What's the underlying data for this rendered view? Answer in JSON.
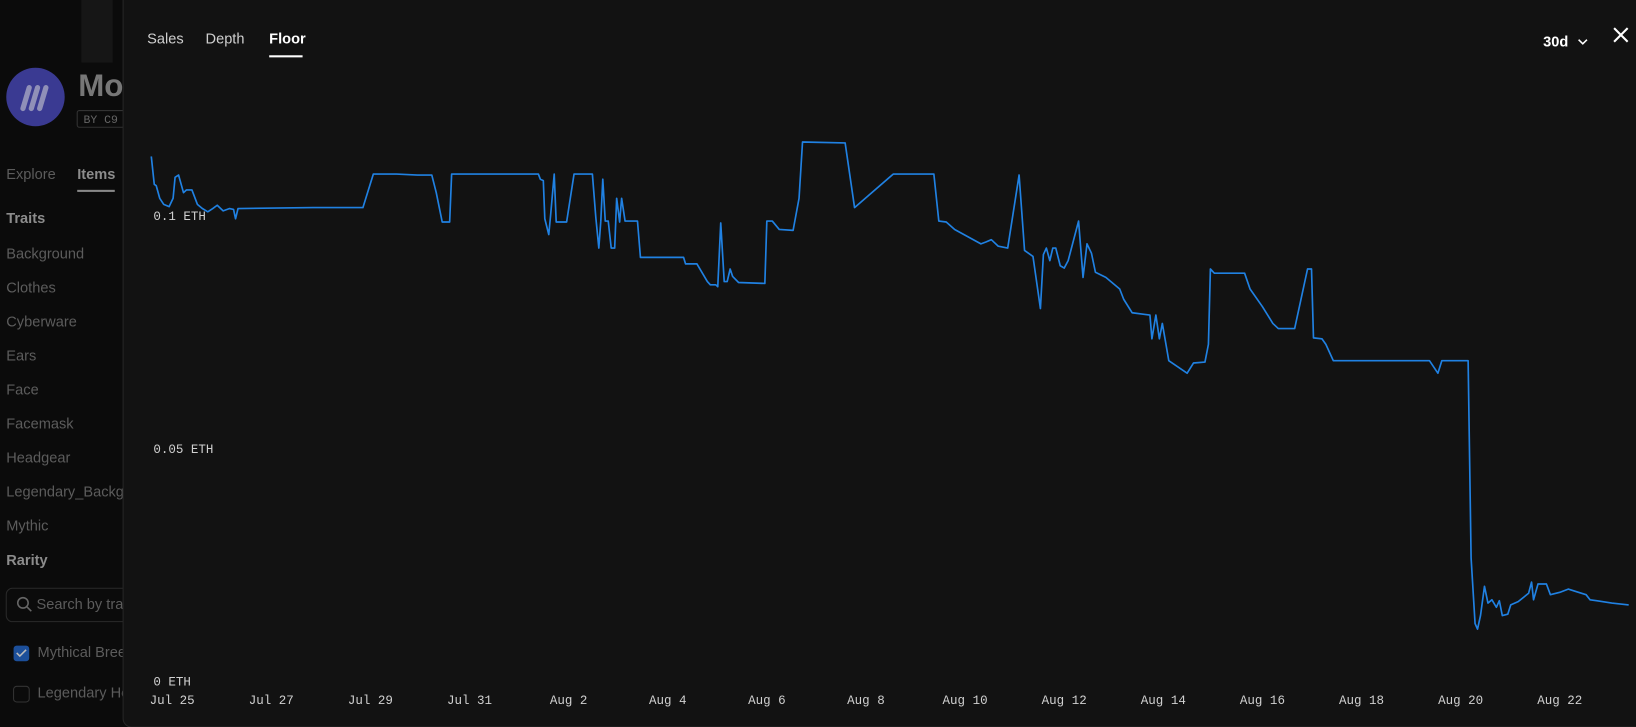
{
  "sidebar": {
    "title": "Mo",
    "creator": "BY C9",
    "nav": [
      "Explore",
      "Items"
    ],
    "traits_heading": "Traits",
    "traits": [
      "Background",
      "Clothes",
      "Cyberware",
      "Ears",
      "Face",
      "Facemask",
      "Headgear",
      "Legendary_Backgro",
      "Mythic"
    ],
    "rarity_heading": "Rarity",
    "search_placeholder": "Search by tra",
    "rarity_options": [
      "Mythical Bree",
      "Legendary Ho"
    ]
  },
  "modal": {
    "tabs": [
      "Sales",
      "Depth",
      "Floor"
    ],
    "range": "30d"
  },
  "chart_data": {
    "type": "line",
    "color": "#2081e2",
    "x": [
      -0.42,
      -0.36,
      -0.32,
      -0.25,
      -0.17,
      -0.06,
      0.02,
      0.06,
      0.13,
      0.23,
      0.29,
      0.4,
      0.51,
      0.61,
      0.72,
      0.82,
      0.91,
      1.03,
      1.16,
      1.24,
      1.28,
      1.33,
      2.84,
      3.85,
      4.06,
      4.53,
      4.95,
      5.24,
      5.33,
      5.45,
      5.6,
      5.64,
      6.42,
      7.39,
      7.43,
      7.49,
      7.52,
      7.6,
      7.64,
      7.71,
      7.75,
      7.96,
      8.11,
      8.48,
      8.55,
      8.61,
      8.65,
      8.69,
      8.74,
      8.8,
      8.86,
      8.93,
      8.97,
      9.03,
      9.07,
      9.14,
      9.39,
      9.45,
      10.32,
      10.36,
      10.59,
      10.8,
      10.86,
      10.97,
      11.01,
      11.07,
      11.14,
      11.2,
      11.26,
      11.31,
      11.43,
      11.96,
      12.0,
      12.11,
      12.25,
      12.53,
      12.65,
      12.72,
      13.58,
      13.77,
      14.55,
      15.37,
      15.47,
      15.62,
      15.79,
      16.32,
      16.42,
      16.53,
      16.67,
      16.86,
      17.09,
      17.2,
      17.37,
      17.52,
      17.58,
      17.64,
      17.71,
      17.77,
      17.83,
      17.92,
      18.0,
      18.08,
      18.29,
      18.38,
      18.46,
      18.55,
      18.63,
      18.84,
      19.12,
      19.2,
      19.37,
      19.73,
      19.77,
      19.85,
      19.92,
      19.98,
      20.06,
      20.11,
      20.48,
      20.61,
      20.84,
      20.91,
      20.95,
      21.03,
      21.64,
      21.75,
      22.0,
      22.21,
      22.32,
      22.65,
      22.91,
      22.99,
      23.03,
      23.2,
      23.28,
      23.43,
      25.37,
      25.54,
      25.62,
      26.15,
      26.21,
      26.29,
      26.34,
      26.4,
      26.48,
      26.55,
      26.63,
      26.72,
      26.78,
      26.84,
      26.95,
      27.01,
      27.16,
      27.37,
      27.43,
      27.47,
      27.56,
      27.73,
      27.81,
      28.0,
      28.17,
      28.32,
      28.53,
      28.61,
      28.74,
      29.05,
      29.39
    ],
    "values": [
      0.113,
      0.107,
      0.1067,
      0.104,
      0.1027,
      0.1022,
      0.104,
      0.1085,
      0.109,
      0.1052,
      0.1058,
      0.1058,
      0.1027,
      0.1018,
      0.1011,
      0.1018,
      0.1025,
      0.1013,
      0.1018,
      0.1016,
      0.0996,
      0.1018,
      0.102,
      0.102,
      0.1092,
      0.1092,
      0.109,
      0.109,
      0.1052,
      0.0989,
      0.0989,
      0.1092,
      0.1092,
      0.1092,
      0.1081,
      0.1078,
      0.0996,
      0.0962,
      0.1007,
      0.1092,
      0.0989,
      0.0989,
      0.1092,
      0.1092,
      0.0998,
      0.0933,
      0.0991,
      0.1081,
      0.0991,
      0.0991,
      0.0933,
      0.0933,
      0.104,
      0.0989,
      0.104,
      0.0991,
      0.0991,
      0.0913,
      0.0913,
      0.0899,
      0.0899,
      0.0861,
      0.0854,
      0.0854,
      0.085,
      0.0987,
      0.0861,
      0.0861,
      0.0888,
      0.0872,
      0.0859,
      0.0857,
      0.0991,
      0.0991,
      0.0973,
      0.0971,
      0.104,
      0.1161,
      0.1159,
      0.102,
      0.1092,
      0.1092,
      0.0991,
      0.0989,
      0.0973,
      0.0942,
      0.0946,
      0.0951,
      0.0937,
      0.0933,
      0.109,
      0.0928,
      0.0915,
      0.0803,
      0.0919,
      0.0933,
      0.0906,
      0.0933,
      0.0933,
      0.0895,
      0.089,
      0.0906,
      0.0991,
      0.087,
      0.0942,
      0.0922,
      0.0881,
      0.087,
      0.0845,
      0.0823,
      0.0794,
      0.0789,
      0.0738,
      0.0789,
      0.0738,
      0.0771,
      0.0722,
      0.0691,
      0.0664,
      0.0686,
      0.0688,
      0.0726,
      0.0888,
      0.0879,
      0.0879,
      0.0845,
      0.0807,
      0.0771,
      0.076,
      0.076,
      0.0888,
      0.0888,
      0.074,
      0.0738,
      0.0726,
      0.0691,
      0.0691,
      0.0664,
      0.0691,
      0.0691,
      0.0267,
      0.0126,
      0.0114,
      0.0143,
      0.0206,
      0.017,
      0.0177,
      0.0161,
      0.0175,
      0.0143,
      0.0146,
      0.0166,
      0.0173,
      0.0191,
      0.0215,
      0.0177,
      0.0211,
      0.0211,
      0.0188,
      0.0193,
      0.02,
      0.0195,
      0.0188,
      0.0177,
      0.0175,
      0.017,
      0.0166
    ],
    "xlim": [
      -0.42,
      29.39
    ],
    "ylim": [
      0,
      0.1242
    ],
    "xticks": [
      {
        "value": 0,
        "label": "Jul 25"
      },
      {
        "value": 2,
        "label": "Jul 27"
      },
      {
        "value": 4,
        "label": "Jul 29"
      },
      {
        "value": 6,
        "label": "Jul 31"
      },
      {
        "value": 8,
        "label": "Aug 2"
      },
      {
        "value": 10,
        "label": "Aug 4"
      },
      {
        "value": 12,
        "label": "Aug 6"
      },
      {
        "value": 14,
        "label": "Aug 8"
      },
      {
        "value": 16,
        "label": "Aug 10"
      },
      {
        "value": 18,
        "label": "Aug 12"
      },
      {
        "value": 20,
        "label": "Aug 14"
      },
      {
        "value": 22,
        "label": "Aug 16"
      },
      {
        "value": 24,
        "label": "Aug 18"
      },
      {
        "value": 26,
        "label": "Aug 20"
      },
      {
        "value": 28,
        "label": "Aug 22"
      }
    ],
    "yticks": [
      {
        "value": 0,
        "label": "0 ETH"
      },
      {
        "value": 0.05,
        "label": "0.05 ETH"
      },
      {
        "value": 0.1,
        "label": "0.1 ETH"
      }
    ]
  }
}
